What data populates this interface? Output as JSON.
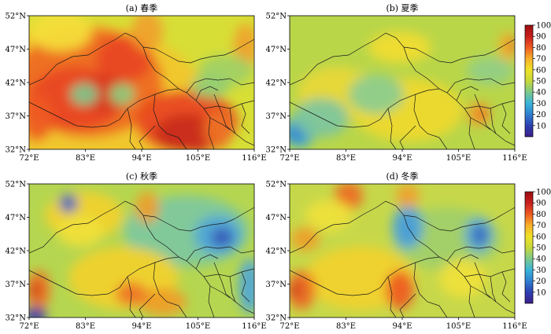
{
  "panels": [
    {
      "id": "a",
      "title": "(a) 春季",
      "mode": "spring"
    },
    {
      "id": "b",
      "title": "(b) 夏季",
      "mode": "summer"
    },
    {
      "id": "c",
      "title": "(c) 秋季",
      "mode": "autumn"
    },
    {
      "id": "d",
      "title": "(d) 冬季",
      "mode": "winter"
    }
  ],
  "axes": {
    "x_ticks": [
      "72°E",
      "83°E",
      "94°E",
      "105°E",
      "116°E"
    ],
    "y_ticks": [
      "52°N",
      "47°N",
      "42°N",
      "37°N",
      "32°N"
    ],
    "lon_range": [
      72,
      116
    ],
    "lat_range": [
      32,
      52
    ]
  },
  "colorbar": {
    "min": 0,
    "max": 100,
    "ticks": [
      "100",
      "90",
      "80",
      "70",
      "60",
      "50",
      "40",
      "30",
      "20",
      "10"
    ],
    "colors": [
      "#3b1f8a",
      "#2d3fb0",
      "#2f7fd0",
      "#39b4d8",
      "#7cc98a",
      "#c7d93a",
      "#f0e127",
      "#f7b02a",
      "#ee5a22",
      "#c81e1e",
      "#9a0e10"
    ]
  }
}
